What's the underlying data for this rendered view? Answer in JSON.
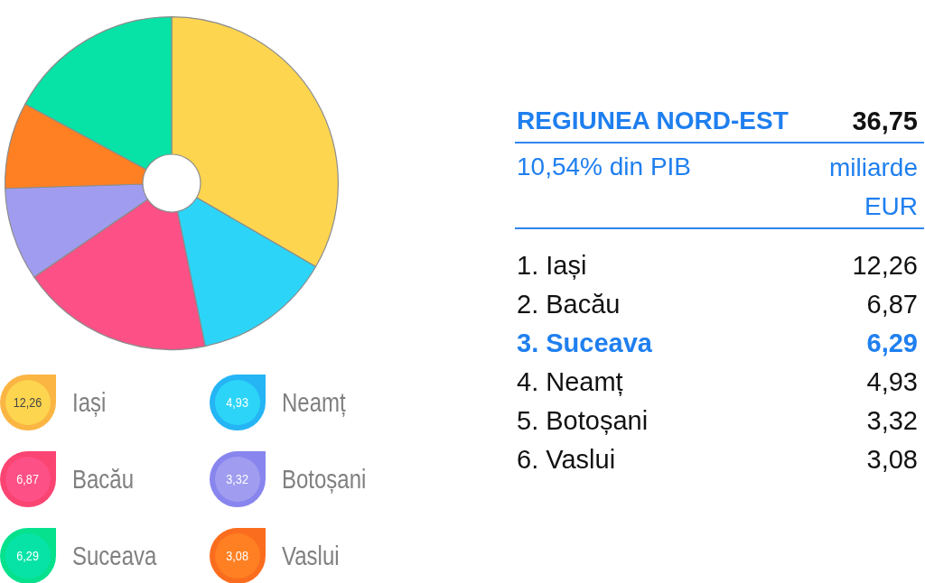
{
  "chart_data": [
    {
      "type": "donut",
      "categories": [
        "Iași",
        "Neamț",
        "Bacău",
        "Botoșani",
        "Vaslui",
        "Suceava"
      ],
      "values": [
        12.26,
        4.93,
        6.87,
        3.32,
        3.08,
        6.29
      ],
      "colors": [
        "#fdd54f",
        "#2cd5f7",
        "#fd5086",
        "#a09df0",
        "#fe8023",
        "#07e3a7"
      ],
      "value_labels": [
        "12,26",
        "4,93",
        "6,87",
        "3,32",
        "3,08",
        "6,29"
      ],
      "legend": "bottom"
    },
    {
      "type": "other",
      "title": "REGIUNEA NORD-EST",
      "subtitle": "10,54% din PIB",
      "annotations": [
        "36,75",
        "miliarde EUR"
      ],
      "categories": [
        "1. Iași",
        "2. Bacău",
        "3. Suceava",
        "4. Neamț",
        "5. Botoșani",
        "6. Vaslui"
      ],
      "value_labels": [
        "12,26",
        "6,87",
        "6,29",
        "4,93",
        "3,32",
        "3,08"
      ],
      "colors": [
        "#111111",
        "#111111",
        "#1f7fef",
        "#111111",
        "#111111",
        "#111111"
      ]
    }
  ]
}
